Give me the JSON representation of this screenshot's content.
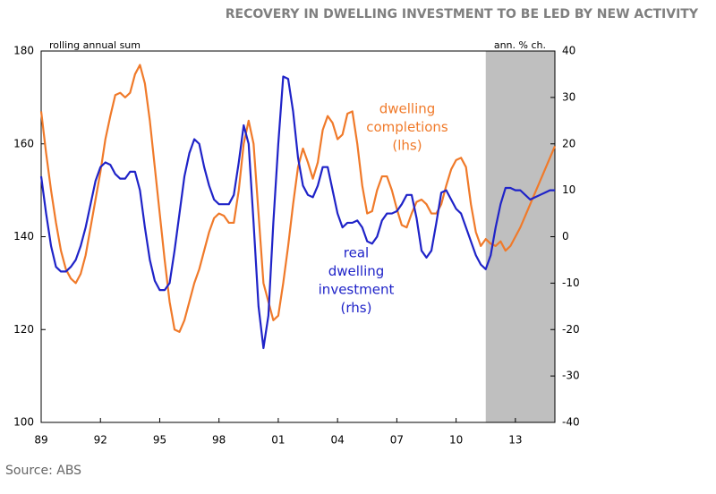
{
  "chart_data": {
    "type": "line",
    "title": "RECOVERY IN DWELLING INVESTMENT TO BE LED BY NEW ACTIVITY",
    "y_axis_label": "rolling annual sum",
    "y2_axis_label": "ann. % ch.",
    "source": "Source: ABS",
    "xlim": [
      1989,
      2015
    ],
    "xticks": [
      {
        "value": 1989,
        "label": "89"
      },
      {
        "value": 1992,
        "label": "92"
      },
      {
        "value": 1995,
        "label": "95"
      },
      {
        "value": 1998,
        "label": "98"
      },
      {
        "value": 2001,
        "label": "01"
      },
      {
        "value": 2004,
        "label": "04"
      },
      {
        "value": 2007,
        "label": "07"
      },
      {
        "value": 2010,
        "label": "10"
      },
      {
        "value": 2013,
        "label": "13"
      }
    ],
    "ylim": [
      100,
      180
    ],
    "yticks": [
      100,
      120,
      140,
      160,
      180
    ],
    "y2lim": [
      -40,
      40
    ],
    "y2ticks": [
      -40,
      -30,
      -20,
      -10,
      0,
      10,
      20,
      30,
      40
    ],
    "grid": false,
    "forecast_start": 2011.5,
    "forecast_color": "#bfbfbf",
    "x": [
      1989,
      1989.25,
      1989.5,
      1989.75,
      1990,
      1990.25,
      1990.5,
      1990.75,
      1991,
      1991.25,
      1991.5,
      1991.75,
      1992,
      1992.25,
      1992.5,
      1992.75,
      1993,
      1993.25,
      1993.5,
      1993.75,
      1994,
      1994.25,
      1994.5,
      1994.75,
      1995,
      1995.25,
      1995.5,
      1995.75,
      1996,
      1996.25,
      1996.5,
      1996.75,
      1997,
      1997.25,
      1997.5,
      1997.75,
      1998,
      1998.25,
      1998.5,
      1998.75,
      1999,
      1999.25,
      1999.5,
      1999.75,
      2000,
      2000.25,
      2000.5,
      2000.75,
      2001,
      2001.25,
      2001.5,
      2001.75,
      2002,
      2002.25,
      2002.5,
      2002.75,
      2003,
      2003.25,
      2003.5,
      2003.75,
      2004,
      2004.25,
      2004.5,
      2004.75,
      2005,
      2005.25,
      2005.5,
      2005.75,
      2006,
      2006.25,
      2006.5,
      2006.75,
      2007,
      2007.25,
      2007.5,
      2007.75,
      2008,
      2008.25,
      2008.5,
      2008.75,
      2009,
      2009.25,
      2009.5,
      2009.75,
      2010,
      2010.25,
      2010.5,
      2010.75,
      2011,
      2011.25,
      2011.5,
      2011.75,
      2012,
      2012.25,
      2012.5,
      2012.75,
      2013,
      2013.25,
      2013.5,
      2013.75,
      2014,
      2014.25,
      2014.5,
      2014.75,
      2015
    ],
    "series": [
      {
        "name_lines": [
          "dwelling",
          "completions",
          "(lhs)"
        ],
        "color": "#f07a2a",
        "axis": "y",
        "values": [
          167,
          158,
          150,
          143,
          137,
          133,
          131,
          130,
          132,
          136,
          142,
          148,
          154,
          161,
          166,
          170.5,
          171,
          170,
          171,
          175,
          177,
          173,
          165,
          155,
          145,
          135,
          126,
          120,
          119.5,
          122,
          126,
          130,
          133,
          137,
          141,
          144,
          145,
          144.5,
          143,
          143,
          150,
          160,
          165,
          160,
          145,
          130,
          126,
          122,
          123,
          130,
          138,
          147,
          155,
          159,
          156,
          152.5,
          156,
          163,
          166,
          164.5,
          161,
          162,
          166.5,
          167,
          160,
          151,
          145,
          145.5,
          150,
          153,
          153,
          150,
          146,
          142.5,
          142,
          145,
          147.5,
          148,
          147,
          145,
          145,
          147,
          151,
          154.5,
          156.5,
          157,
          155,
          147,
          141,
          138,
          139.5,
          138.5,
          138,
          139,
          137,
          138,
          140,
          142,
          144.5,
          147,
          149.5,
          152,
          154.5,
          157,
          159.5
        ]
      },
      {
        "name_lines": [
          "real",
          "dwelling",
          "investment",
          "(rhs)"
        ],
        "color": "#1f23c8",
        "axis": "y2",
        "values": [
          13,
          5,
          -2,
          -6.5,
          -7.5,
          -7.5,
          -6.5,
          -5,
          -2,
          2,
          7,
          12,
          15,
          16,
          15.5,
          13.5,
          12.5,
          12.5,
          14,
          14,
          10,
          2,
          -5,
          -9.5,
          -11.5,
          -11.5,
          -10,
          -3,
          5,
          13,
          18,
          21,
          20,
          15,
          11,
          8,
          7,
          7,
          7,
          9,
          16,
          24,
          20,
          3,
          -15,
          -24,
          -17,
          3,
          20,
          34.5,
          34,
          27,
          17,
          11,
          9,
          8.5,
          11,
          15,
          15,
          10,
          5,
          2,
          3,
          3,
          3.5,
          2,
          -1,
          -1.5,
          0,
          3.5,
          5,
          5,
          5.5,
          7,
          9,
          9,
          4,
          -3,
          -4.5,
          -3,
          3,
          9.5,
          10,
          8,
          6,
          5,
          2,
          -1,
          -4,
          -6,
          -7,
          -4,
          2,
          7,
          10.5,
          10.5,
          10,
          10,
          9,
          8,
          8.5,
          9,
          9.5,
          10,
          10
        ]
      }
    ]
  }
}
